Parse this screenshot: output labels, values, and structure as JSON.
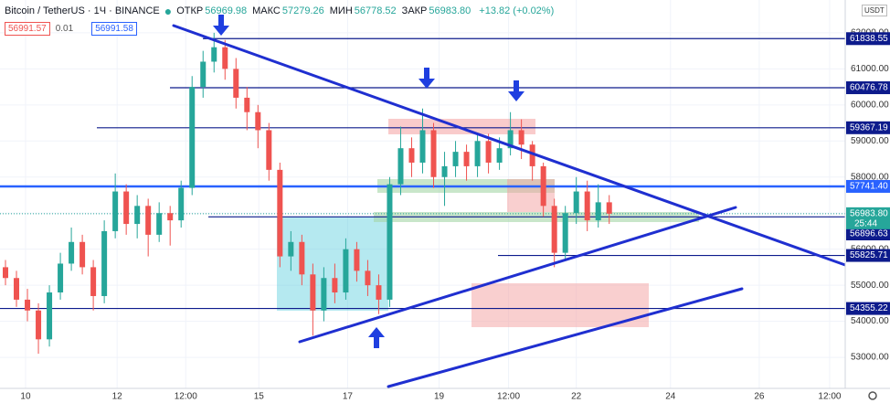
{
  "chart_data": {
    "type": "candlestick",
    "title": "Bitcoin / TetherUS · 1Ч · BINANCE",
    "ohlc_header": [
      {
        "label": "ОТКР",
        "value": "56969.98"
      },
      {
        "label": "МАКС",
        "value": "57279.26"
      },
      {
        "label": "МИН",
        "value": "56778.52"
      },
      {
        "label": "ЗАКР",
        "value": "56983.80"
      }
    ],
    "change": "+13.82 (+0.02%)",
    "bid": "56991.57",
    "spread": "0.01",
    "ask": "56991.58",
    "currency": "USDT",
    "up_color": "#26a69a",
    "down_color": "#ef5350",
    "x": [
      0.5,
      1.5,
      2.5,
      3.5,
      4.5,
      5.5,
      6.5,
      7.5,
      8.5,
      9.5,
      10.5,
      11.5,
      12.5,
      13.5,
      14.5,
      15.5,
      16.5,
      17.5,
      18.5,
      19.5,
      20.5,
      21.5,
      22.5,
      23.5,
      24.5,
      25.5,
      26.5,
      27.5,
      28.5,
      29.5,
      30.5,
      31.5,
      32.5,
      33.5,
      34.5,
      35.5,
      36.5,
      37.5,
      38.5,
      39.5,
      40.5,
      41.5,
      42.5,
      43.5,
      44.5,
      45.5,
      46.5,
      47.5,
      48.5,
      49.5,
      50.5,
      51.5,
      52.5,
      53.5,
      54.5,
      55.5
    ],
    "open": [
      55500,
      55200,
      54600,
      54300,
      53500,
      54800,
      55600,
      56200,
      55500,
      54700,
      56500,
      57600,
      56700,
      57200,
      56400,
      57000,
      56800,
      57700,
      60500,
      61200,
      61600,
      61000,
      60200,
      59800,
      59300,
      58200,
      55800,
      56200,
      55300,
      54300,
      55200,
      54800,
      56000,
      55400,
      55000,
      54600,
      57800,
      58800,
      58400,
      59300,
      58000,
      58300,
      58700,
      58300,
      59000,
      58400,
      58800,
      59300,
      58900,
      58300,
      57200,
      55900,
      57000,
      57600,
      56800,
      57300
    ],
    "high": [
      55700,
      55400,
      54900,
      54500,
      55000,
      55900,
      56600,
      56400,
      55700,
      56800,
      58100,
      57800,
      57500,
      57400,
      57300,
      57200,
      57900,
      60800,
      61500,
      62000,
      61800,
      61300,
      60500,
      60000,
      59500,
      58400,
      56500,
      56400,
      55600,
      55500,
      55600,
      56300,
      56200,
      55700,
      55300,
      58000,
      59400,
      59100,
      59900,
      59500,
      58700,
      59000,
      58900,
      59200,
      59200,
      59100,
      59800,
      59600,
      59000,
      58400,
      57400,
      57200,
      58000,
      57900,
      57800,
      57500
    ],
    "low": [
      55000,
      54400,
      54000,
      53100,
      53300,
      54600,
      55400,
      55300,
      54300,
      54500,
      56300,
      56400,
      56300,
      55800,
      56200,
      56100,
      56600,
      57500,
      60200,
      60900,
      60700,
      59900,
      59300,
      58800,
      57900,
      55500,
      55400,
      55000,
      53600,
      54000,
      54500,
      54600,
      55100,
      54700,
      54200,
      54400,
      57500,
      58000,
      58100,
      57700,
      57200,
      58000,
      57900,
      58000,
      58100,
      58200,
      58600,
      58500,
      57900,
      56900,
      55500,
      55700,
      56700,
      56500,
      56600,
      56700
    ],
    "close": [
      55200,
      54600,
      54300,
      53500,
      54800,
      55600,
      56200,
      55500,
      54700,
      56500,
      57600,
      56700,
      57200,
      56400,
      57000,
      56800,
      57700,
      60500,
      61200,
      61600,
      61000,
      60200,
      59800,
      59300,
      58200,
      55800,
      56200,
      55300,
      54300,
      55200,
      54800,
      56000,
      55400,
      55000,
      54600,
      57800,
      58800,
      58400,
      59300,
      58000,
      58300,
      58700,
      58300,
      59000,
      58400,
      58800,
      59300,
      58900,
      58300,
      57200,
      55900,
      57000,
      57600,
      56800,
      57300,
      56983.8
    ],
    "xlim": [
      0,
      77
    ],
    "ylim": [
      52140,
      62910
    ],
    "xticks": [
      {
        "value": 2.33,
        "label": "10"
      },
      {
        "value": 10.67,
        "label": "12"
      },
      {
        "value": 16.92,
        "label": "12:00"
      },
      {
        "value": 23.58,
        "label": "15"
      },
      {
        "value": 31.67,
        "label": "17"
      },
      {
        "value": 40,
        "label": "19"
      },
      {
        "value": 46.33,
        "label": "12:00"
      },
      {
        "value": 52.5,
        "label": "22"
      },
      {
        "value": 61.08,
        "label": "24"
      },
      {
        "value": 69.17,
        "label": "26"
      },
      {
        "value": 75.58,
        "label": "12:00"
      }
    ],
    "yticks": [
      {
        "value": 53000,
        "label": "53000.00"
      },
      {
        "value": 54000,
        "label": "54000.00"
      },
      {
        "value": 55000,
        "label": "55000.00"
      },
      {
        "value": 56000,
        "label": "56000.00"
      },
      {
        "value": 57000,
        "label": "57000.00"
      },
      {
        "value": 58000,
        "label": "58000.00"
      },
      {
        "value": 59000,
        "label": "59000.00"
      },
      {
        "value": 60000,
        "label": "60000.00"
      },
      {
        "value": 61000,
        "label": "61000.00"
      },
      {
        "value": 62000,
        "label": "62000.00"
      }
    ],
    "grid": true,
    "price_levels": [
      61838.55,
      60476.78,
      59367.19,
      {
        "value": 57741.4,
        "label": "57741.40"
      },
      56896.63,
      55825.71,
      54355.22
    ],
    "level_color": "#0d1b8c",
    "current_price": {
      "value": 56983.8,
      "label": "56983.80"
    },
    "current_price_timer": "25:44"
  }
}
